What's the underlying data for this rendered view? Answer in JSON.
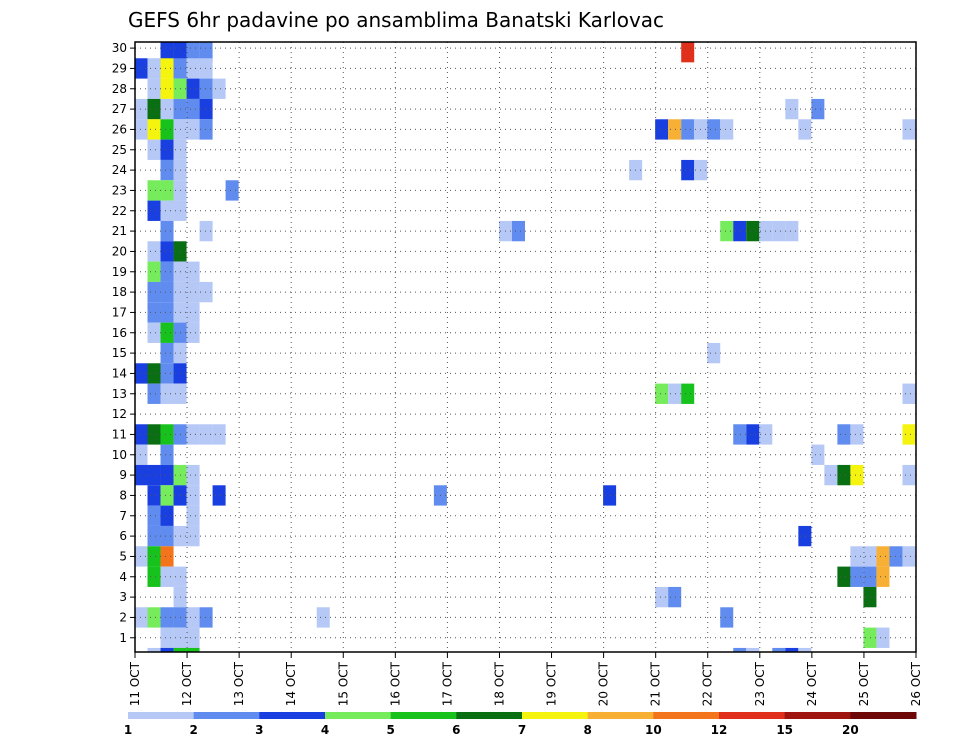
{
  "chart_data": {
    "type": "heatmap",
    "title": "GEFS 6hr padavine po ansamblima Banatski Karlovac",
    "xlabel": "",
    "ylabel": "",
    "x_ticks": [
      "11 OCT",
      "12 OCT",
      "13 OCT",
      "14 OCT",
      "15 OCT",
      "16 OCT",
      "17 OCT",
      "18 OCT",
      "19 OCT",
      "20 OCT",
      "21 OCT",
      "22 OCT",
      "23 OCT",
      "24 OCT",
      "25 OCT",
      "26 OCT"
    ],
    "y_ticks": [
      1,
      2,
      3,
      4,
      5,
      6,
      7,
      8,
      9,
      10,
      11,
      12,
      13,
      14,
      15,
      16,
      17,
      18,
      19,
      20,
      21,
      22,
      23,
      24,
      25,
      26,
      27,
      28,
      29,
      30
    ],
    "xlim": [
      0,
      60
    ],
    "ylim": [
      0.3,
      30.3
    ],
    "grid": true,
    "colorbar": {
      "levels": [
        "1",
        "2",
        "3",
        "4",
        "5",
        "6",
        "7",
        "8",
        "10",
        "12",
        "15",
        "20"
      ],
      "colors": [
        "#b6c8f6",
        "#5f8cee",
        "#1a3fe0",
        "#76ec5c",
        "#18c21c",
        "#0a6e12",
        "#f4f40e",
        "#f8b034",
        "#f4741c",
        "#e0301c",
        "#a01410",
        "#6e0808"
      ]
    },
    "cells": [
      [
        2,
        30,
        2
      ],
      [
        3,
        30,
        2
      ],
      [
        4,
        30,
        1
      ],
      [
        5,
        30,
        1
      ],
      [
        42,
        30,
        9
      ],
      [
        0,
        29,
        2
      ],
      [
        1,
        29,
        0
      ],
      [
        2,
        29,
        6
      ],
      [
        3,
        29,
        1
      ],
      [
        4,
        29,
        0
      ],
      [
        5,
        29,
        0
      ],
      [
        1,
        28,
        0
      ],
      [
        2,
        28,
        6
      ],
      [
        3,
        28,
        3
      ],
      [
        4,
        28,
        2
      ],
      [
        5,
        28,
        1
      ],
      [
        6,
        28,
        0
      ],
      [
        0,
        27,
        0
      ],
      [
        1,
        27,
        5
      ],
      [
        2,
        27,
        0
      ],
      [
        3,
        27,
        1
      ],
      [
        4,
        27,
        1
      ],
      [
        5,
        27,
        2
      ],
      [
        50,
        27,
        0
      ],
      [
        52,
        27,
        1
      ],
      [
        0,
        26,
        0
      ],
      [
        1,
        26,
        6
      ],
      [
        2,
        26,
        4
      ],
      [
        3,
        26,
        0
      ],
      [
        4,
        26,
        0
      ],
      [
        5,
        26,
        1
      ],
      [
        40,
        26,
        2
      ],
      [
        41,
        26,
        7
      ],
      [
        42,
        26,
        1
      ],
      [
        43,
        26,
        0
      ],
      [
        44,
        26,
        1
      ],
      [
        45,
        26,
        0
      ],
      [
        51,
        26,
        0
      ],
      [
        59,
        26,
        0
      ],
      [
        60,
        26,
        1
      ],
      [
        1,
        25,
        0
      ],
      [
        2,
        25,
        2
      ],
      [
        3,
        25,
        0
      ],
      [
        2,
        24,
        1
      ],
      [
        3,
        24,
        0
      ],
      [
        38,
        24,
        0
      ],
      [
        42,
        24,
        2
      ],
      [
        43,
        24,
        0
      ],
      [
        1,
        23,
        3
      ],
      [
        2,
        23,
        3
      ],
      [
        3,
        23,
        0
      ],
      [
        7,
        23,
        1
      ],
      [
        1,
        22,
        2
      ],
      [
        2,
        22,
        0
      ],
      [
        3,
        22,
        0
      ],
      [
        2,
        21,
        1
      ],
      [
        5,
        21,
        0
      ],
      [
        28,
        21,
        0
      ],
      [
        29,
        21,
        1
      ],
      [
        45,
        21,
        3
      ],
      [
        46,
        21,
        2
      ],
      [
        47,
        21,
        5
      ],
      [
        48,
        21,
        0
      ],
      [
        49,
        21,
        0
      ],
      [
        50,
        21,
        0
      ],
      [
        1,
        20,
        0
      ],
      [
        2,
        20,
        2
      ],
      [
        3,
        20,
        5
      ],
      [
        1,
        19,
        3
      ],
      [
        2,
        19,
        1
      ],
      [
        3,
        19,
        0
      ],
      [
        4,
        19,
        0
      ],
      [
        1,
        18,
        1
      ],
      [
        2,
        18,
        1
      ],
      [
        3,
        18,
        0
      ],
      [
        4,
        18,
        0
      ],
      [
        5,
        18,
        0
      ],
      [
        1,
        17,
        1
      ],
      [
        2,
        17,
        1
      ],
      [
        3,
        17,
        0
      ],
      [
        4,
        17,
        0
      ],
      [
        1,
        16,
        0
      ],
      [
        2,
        16,
        4
      ],
      [
        3,
        16,
        1
      ],
      [
        4,
        16,
        0
      ],
      [
        2,
        15,
        1
      ],
      [
        3,
        15,
        0
      ],
      [
        44,
        15,
        0
      ],
      [
        0,
        14,
        2
      ],
      [
        1,
        14,
        5
      ],
      [
        2,
        14,
        1
      ],
      [
        3,
        14,
        2
      ],
      [
        1,
        13,
        1
      ],
      [
        2,
        13,
        0
      ],
      [
        3,
        13,
        0
      ],
      [
        40,
        13,
        3
      ],
      [
        41,
        13,
        0
      ],
      [
        42,
        13,
        4
      ],
      [
        59,
        13,
        0
      ],
      [
        0,
        11,
        2
      ],
      [
        1,
        11,
        5
      ],
      [
        2,
        11,
        4
      ],
      [
        3,
        11,
        1
      ],
      [
        4,
        11,
        0
      ],
      [
        5,
        11,
        0
      ],
      [
        6,
        11,
        0
      ],
      [
        46,
        11,
        1
      ],
      [
        47,
        11,
        2
      ],
      [
        48,
        11,
        0
      ],
      [
        54,
        11,
        1
      ],
      [
        55,
        11,
        0
      ],
      [
        59,
        11,
        6
      ],
      [
        60,
        11,
        1
      ],
      [
        0,
        10,
        0
      ],
      [
        2,
        10,
        1
      ],
      [
        52,
        10,
        0
      ],
      [
        0,
        9,
        2
      ],
      [
        1,
        9,
        2
      ],
      [
        2,
        9,
        2
      ],
      [
        3,
        9,
        3
      ],
      [
        4,
        9,
        0
      ],
      [
        53,
        9,
        0
      ],
      [
        54,
        9,
        5
      ],
      [
        55,
        9,
        6
      ],
      [
        59,
        9,
        0
      ],
      [
        1,
        8,
        2
      ],
      [
        2,
        8,
        3
      ],
      [
        3,
        8,
        2
      ],
      [
        4,
        8,
        0
      ],
      [
        6,
        8,
        2
      ],
      [
        23,
        8,
        1
      ],
      [
        36,
        8,
        2
      ],
      [
        1,
        7,
        1
      ],
      [
        2,
        7,
        2
      ],
      [
        4,
        7,
        0
      ],
      [
        1,
        6,
        1
      ],
      [
        2,
        6,
        1
      ],
      [
        3,
        6,
        0
      ],
      [
        4,
        6,
        0
      ],
      [
        51,
        6,
        2
      ],
      [
        0,
        5,
        0
      ],
      [
        1,
        5,
        4
      ],
      [
        2,
        5,
        8
      ],
      [
        55,
        5,
        0
      ],
      [
        56,
        5,
        0
      ],
      [
        57,
        5,
        7
      ],
      [
        58,
        5,
        1
      ],
      [
        59,
        5,
        0
      ],
      [
        1,
        4,
        4
      ],
      [
        2,
        4,
        0
      ],
      [
        3,
        4,
        0
      ],
      [
        54,
        4,
        5
      ],
      [
        55,
        4,
        1
      ],
      [
        56,
        4,
        1
      ],
      [
        57,
        4,
        7
      ],
      [
        60,
        4,
        0
      ],
      [
        3,
        3,
        0
      ],
      [
        40,
        3,
        0
      ],
      [
        41,
        3,
        1
      ],
      [
        56,
        3,
        5
      ],
      [
        0,
        2,
        0
      ],
      [
        1,
        2,
        3
      ],
      [
        2,
        2,
        1
      ],
      [
        3,
        2,
        1
      ],
      [
        4,
        2,
        0
      ],
      [
        5,
        2,
        1
      ],
      [
        14,
        2,
        0
      ],
      [
        45,
        2,
        1
      ],
      [
        2,
        1,
        0
      ],
      [
        3,
        1,
        0
      ],
      [
        4,
        1,
        0
      ],
      [
        56,
        1,
        3
      ],
      [
        57,
        1,
        0
      ],
      [
        1,
        0.3,
        0
      ],
      [
        2,
        0.3,
        2
      ],
      [
        3,
        0.3,
        4
      ],
      [
        4,
        0.3,
        4
      ],
      [
        46,
        0.3,
        1
      ],
      [
        47,
        0.3,
        0
      ],
      [
        49,
        0.3,
        1
      ],
      [
        50,
        0.3,
        2
      ],
      [
        51,
        0.3,
        0
      ],
      [
        60,
        0.3,
        2
      ]
    ]
  }
}
